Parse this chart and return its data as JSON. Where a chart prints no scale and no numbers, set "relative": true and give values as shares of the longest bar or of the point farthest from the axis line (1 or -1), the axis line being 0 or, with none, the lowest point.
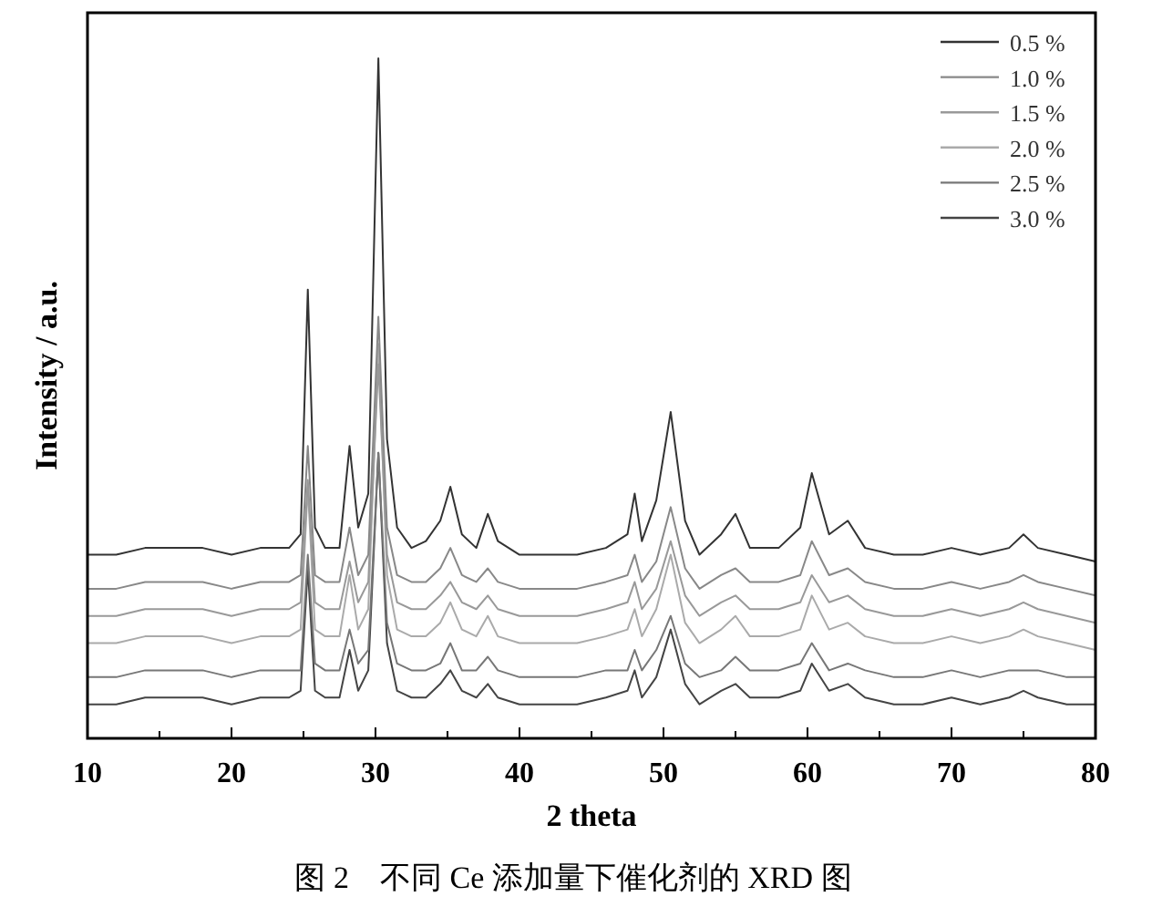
{
  "chart_data": {
    "type": "line",
    "relative": true,
    "xlabel": "2 theta",
    "ylabel": "Intensity / a.u.",
    "annotations": [
      "图 2　不同 Ce 添加量下催化剂的 XRD 图"
    ],
    "xlim": [
      10,
      80
    ],
    "xticks": [
      10,
      {
        "value": 15,
        "label": null
      },
      20,
      {
        "value": 25,
        "label": null
      },
      30,
      {
        "value": 35,
        "label": null
      },
      40,
      {
        "value": 45,
        "label": null
      },
      50,
      {
        "value": 55,
        "label": null
      },
      60,
      {
        "value": 65,
        "label": null
      },
      70,
      {
        "value": 75,
        "label": null
      },
      80
    ],
    "legend": "top right",
    "line_style": "solid",
    "x": [
      10,
      12,
      14,
      16,
      18,
      20,
      22,
      24,
      24.8,
      25.3,
      25.8,
      26.5,
      27.5,
      28.2,
      28.8,
      29.5,
      30.2,
      30.8,
      31.5,
      32.5,
      33.5,
      34.5,
      35.2,
      36,
      37,
      37.8,
      38.5,
      40,
      42,
      44,
      46,
      47.5,
      48,
      48.5,
      49.5,
      50.5,
      51.5,
      52.5,
      54,
      55,
      56,
      58,
      59.5,
      60.3,
      61.5,
      62.8,
      64,
      66,
      68,
      70,
      72,
      74,
      75,
      76,
      78,
      80
    ],
    "series": [
      {
        "name": "0.5 %",
        "color": "#333333",
        "values": [
          0.27,
          0.27,
          0.28,
          0.28,
          0.28,
          0.27,
          0.28,
          0.28,
          0.3,
          0.66,
          0.31,
          0.28,
          0.28,
          0.43,
          0.31,
          0.36,
          1,
          0.44,
          0.31,
          0.28,
          0.29,
          0.32,
          0.37,
          0.3,
          0.28,
          0.33,
          0.29,
          0.27,
          0.27,
          0.27,
          0.28,
          0.3,
          0.36,
          0.29,
          0.35,
          0.48,
          0.32,
          0.27,
          0.3,
          0.33,
          0.28,
          0.28,
          0.31,
          0.39,
          0.3,
          0.32,
          0.28,
          0.27,
          0.27,
          0.28,
          0.27,
          0.28,
          0.3,
          0.28,
          0.27,
          0.26
        ]
      },
      {
        "name": "1.0 %",
        "color": "#888888",
        "values": [
          0.22,
          0.22,
          0.23,
          0.23,
          0.23,
          0.22,
          0.23,
          0.23,
          0.24,
          0.43,
          0.24,
          0.23,
          0.23,
          0.31,
          0.24,
          0.27,
          0.62,
          0.31,
          0.24,
          0.23,
          0.23,
          0.25,
          0.28,
          0.24,
          0.23,
          0.25,
          0.23,
          0.22,
          0.22,
          0.22,
          0.23,
          0.24,
          0.27,
          0.23,
          0.26,
          0.34,
          0.25,
          0.22,
          0.24,
          0.25,
          0.23,
          0.23,
          0.24,
          0.29,
          0.24,
          0.25,
          0.23,
          0.22,
          0.22,
          0.23,
          0.22,
          0.23,
          0.24,
          0.23,
          0.22,
          0.21
        ]
      },
      {
        "name": "1.5 %",
        "color": "#999999",
        "values": [
          0.18,
          0.18,
          0.19,
          0.19,
          0.19,
          0.18,
          0.19,
          0.19,
          0.2,
          0.38,
          0.2,
          0.19,
          0.19,
          0.26,
          0.2,
          0.23,
          0.55,
          0.27,
          0.2,
          0.19,
          0.19,
          0.21,
          0.23,
          0.2,
          0.19,
          0.21,
          0.19,
          0.18,
          0.18,
          0.18,
          0.19,
          0.2,
          0.23,
          0.19,
          0.22,
          0.29,
          0.21,
          0.18,
          0.2,
          0.21,
          0.19,
          0.19,
          0.2,
          0.24,
          0.2,
          0.21,
          0.19,
          0.18,
          0.18,
          0.19,
          0.18,
          0.19,
          0.2,
          0.19,
          0.18,
          0.17
        ]
      },
      {
        "name": "2.0 %",
        "color": "#aaaaaa",
        "values": [
          0.14,
          0.14,
          0.15,
          0.15,
          0.15,
          0.14,
          0.15,
          0.15,
          0.16,
          0.37,
          0.16,
          0.15,
          0.15,
          0.24,
          0.16,
          0.19,
          0.58,
          0.24,
          0.16,
          0.15,
          0.15,
          0.17,
          0.2,
          0.16,
          0.15,
          0.18,
          0.15,
          0.14,
          0.14,
          0.14,
          0.15,
          0.16,
          0.19,
          0.15,
          0.19,
          0.27,
          0.17,
          0.14,
          0.16,
          0.18,
          0.15,
          0.15,
          0.16,
          0.21,
          0.16,
          0.17,
          0.15,
          0.14,
          0.14,
          0.15,
          0.14,
          0.15,
          0.16,
          0.15,
          0.14,
          0.13
        ]
      },
      {
        "name": "2.5 %",
        "color": "#777777",
        "values": [
          0.09,
          0.09,
          0.1,
          0.1,
          0.1,
          0.09,
          0.1,
          0.1,
          0.1,
          0.27,
          0.11,
          0.1,
          0.1,
          0.16,
          0.11,
          0.13,
          0.42,
          0.17,
          0.11,
          0.1,
          0.1,
          0.11,
          0.14,
          0.1,
          0.1,
          0.12,
          0.1,
          0.09,
          0.09,
          0.09,
          0.1,
          0.1,
          0.13,
          0.1,
          0.13,
          0.18,
          0.11,
          0.09,
          0.1,
          0.12,
          0.1,
          0.1,
          0.11,
          0.14,
          0.1,
          0.11,
          0.1,
          0.09,
          0.09,
          0.1,
          0.09,
          0.1,
          0.1,
          0.1,
          0.09,
          0.09
        ]
      },
      {
        "name": "3.0 %",
        "color": "#444444",
        "values": [
          0.05,
          0.05,
          0.06,
          0.06,
          0.06,
          0.05,
          0.06,
          0.06,
          0.07,
          0.25,
          0.07,
          0.06,
          0.06,
          0.13,
          0.07,
          0.1,
          0.42,
          0.14,
          0.07,
          0.06,
          0.06,
          0.08,
          0.1,
          0.07,
          0.06,
          0.08,
          0.06,
          0.05,
          0.05,
          0.05,
          0.06,
          0.07,
          0.1,
          0.06,
          0.09,
          0.16,
          0.08,
          0.05,
          0.07,
          0.08,
          0.06,
          0.06,
          0.07,
          0.11,
          0.07,
          0.08,
          0.06,
          0.05,
          0.05,
          0.06,
          0.05,
          0.06,
          0.07,
          0.06,
          0.05,
          0.05
        ]
      }
    ]
  }
}
